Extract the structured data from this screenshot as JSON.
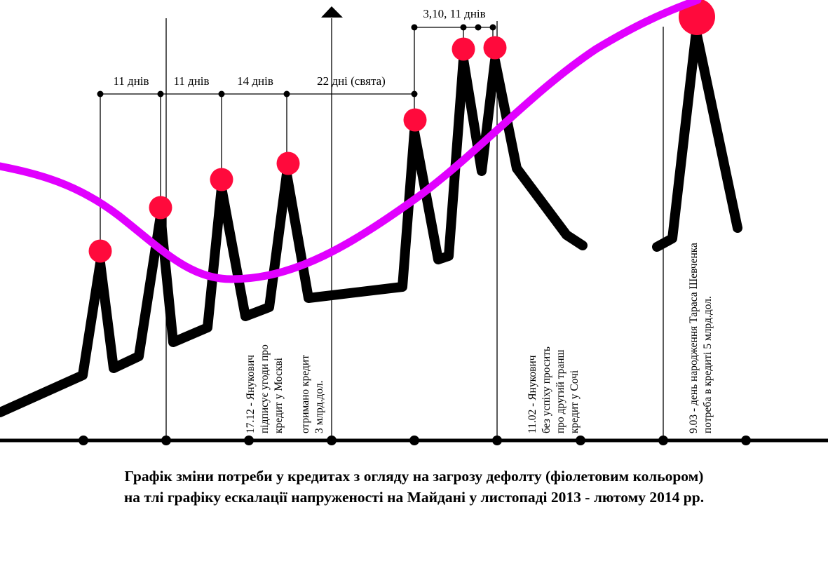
{
  "colors": {
    "background": "#ffffff",
    "tension_line": "#000000",
    "peak_marker": "#ff0a3c",
    "credit_need_curve": "#e100ff",
    "axis": "#000000"
  },
  "axis_arrow": "up-arrow-triangle",
  "interval_labels": [
    "11 днів",
    "11 днів",
    "14 днів",
    "22 дні (свята)",
    "3,10, 11 днів"
  ],
  "annotations": [
    {
      "id": "annot-1712",
      "lines": [
        "17.12 - Янукович",
        "підписує угоди про",
        "кредит у Москві"
      ]
    },
    {
      "id": "annot-credit",
      "lines": [
        "отримано кредит",
        "3 млрд.дол."
      ]
    },
    {
      "id": "annot-1102",
      "lines": [
        "11.02 - Янукович",
        "без успіху просить",
        "про другий транш",
        "кредит у Сочі"
      ]
    },
    {
      "id": "annot-0903",
      "lines": [
        "9.03 - день народження Тараса Шевченка",
        "потреба в кредиті 5 млрд.дол."
      ]
    }
  ],
  "caption": {
    "line1": "Графік зміни потреби у кредитах з огляду на загрозу дефолту (фіолетовим кольором)",
    "line2": "на тлі графіку ескалації напруженості на Майдані у листопаді 2013 - лютому 2014 рр."
  }
}
